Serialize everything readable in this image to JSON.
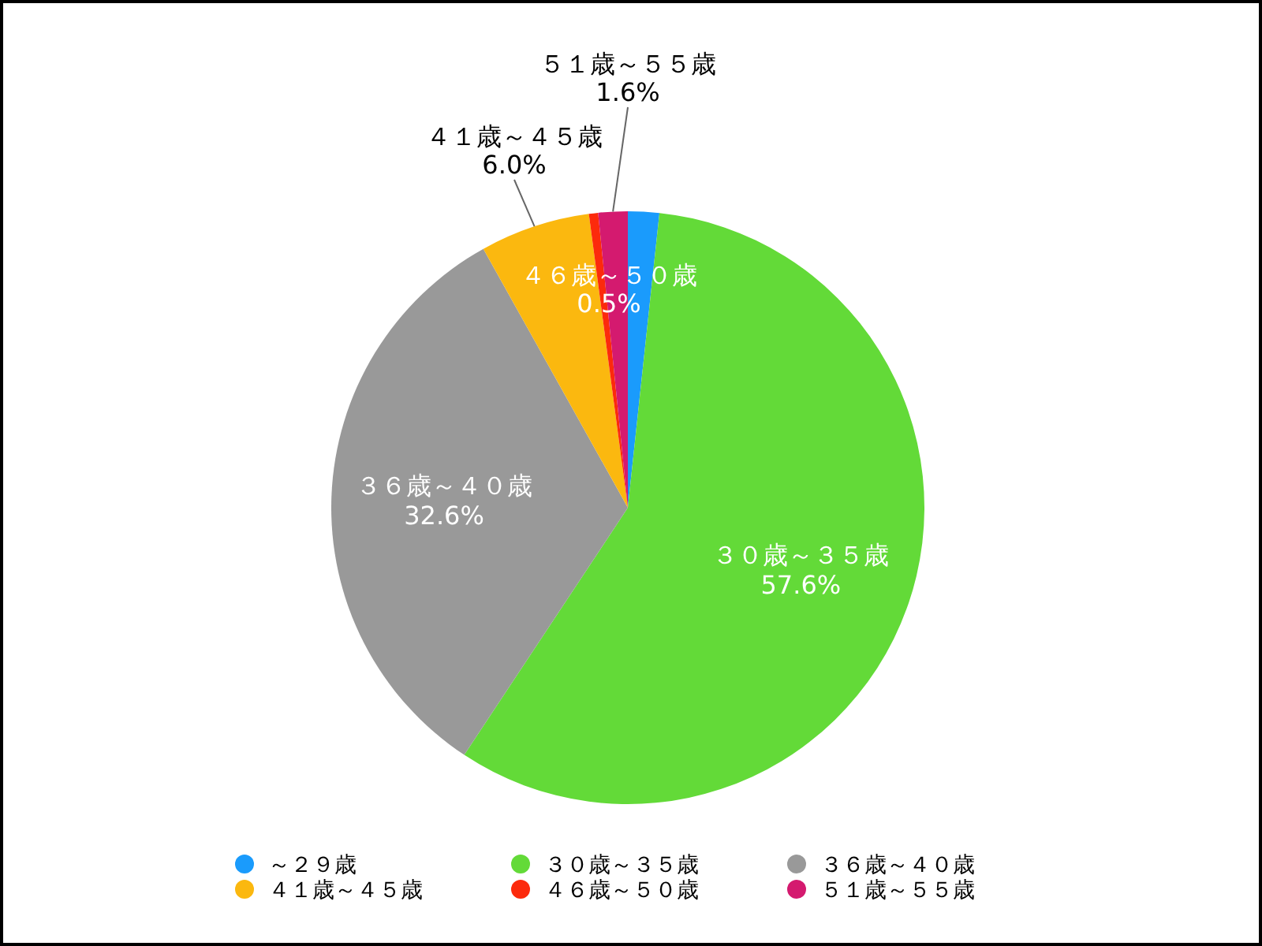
{
  "chart_data": {
    "type": "pie",
    "categories": [
      "～２９歳",
      "３０歳～３５歳",
      "３６歳～４０歳",
      "４１歳～４５歳",
      "４６歳～５０歳",
      "５１歳～５５歳"
    ],
    "values": [
      1.7,
      57.6,
      32.6,
      6.0,
      0.5,
      1.6
    ],
    "value_labels": [
      null,
      "57.6%",
      "32.6%",
      "6.0%",
      "0.5%",
      "1.6%"
    ],
    "colors": [
      "#1a9bfc",
      "#63da38",
      "#999999",
      "#fbb80f",
      "#fc2a0c",
      "#d41a6f"
    ],
    "legend": "bottom"
  }
}
